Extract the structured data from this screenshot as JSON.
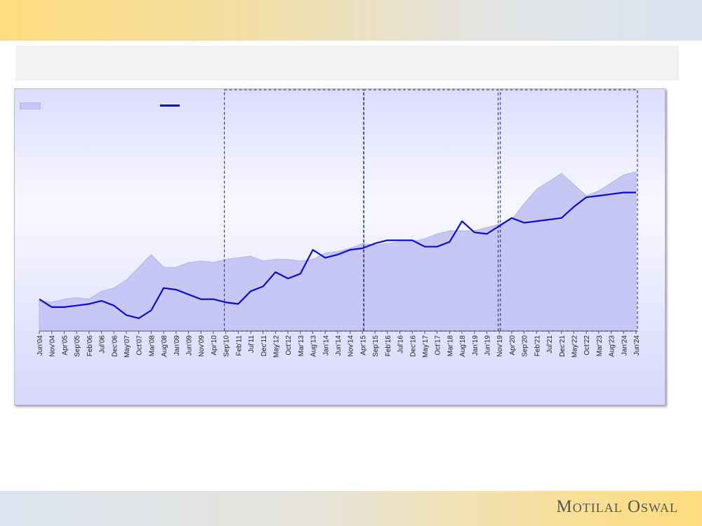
{
  "header": {
    "title": ""
  },
  "brand": {
    "logo_text": "Motilal Oswal"
  },
  "legend": {
    "area_label": "",
    "line_label": ""
  },
  "colors": {
    "area_fill": "#c7c7f5",
    "area_stroke": "#b3b3ea",
    "line": "#0a0ad8",
    "phase_box": "#1a1a6e"
  },
  "chart_data": {
    "type": "line",
    "title": "",
    "xlabel": "",
    "ylabel": "",
    "ylim": [
      0,
      100
    ],
    "grid": false,
    "legend_position": "top-left",
    "x_tick_labels": [
      "Jun'04",
      "Nov'04",
      "Apr'05",
      "Sep'05",
      "Feb'06",
      "Jul'06",
      "Dec'06",
      "May'07",
      "Oct'07",
      "Mar'08",
      "Aug'08",
      "Jan'09",
      "Jun'09",
      "Nov'09",
      "Apr'10",
      "Sep'10",
      "Feb'11",
      "Jul'11",
      "Dec'11",
      "May'12",
      "Oct'12",
      "Mar'13",
      "Aug'13",
      "Jan'14",
      "Jun'14",
      "Nov'14",
      "Apr'15",
      "Sep'15",
      "Feb'16",
      "Jul'16",
      "Dec'16",
      "May'17",
      "Oct'17",
      "Mar'18",
      "Aug'18",
      "Jan'19",
      "Jun'19",
      "Nov'19",
      "Apr'20",
      "Sep'20",
      "Feb'21",
      "Jul'21",
      "Dec'21",
      "May'22",
      "Oct'22",
      "Mar'23",
      "Aug'23",
      "Jan'24",
      "Jun'24"
    ],
    "phases": [
      {
        "start": "Sep'10",
        "end": "Apr'15"
      },
      {
        "start": "May'15",
        "end": "Oct'19"
      },
      {
        "start": "Dec'19",
        "end": "Jun'24"
      }
    ],
    "series": [
      {
        "type": "area",
        "points": [
          [
            "Jun'04",
            19
          ],
          [
            "Nov'04",
            18
          ],
          [
            "Apr'05",
            20
          ],
          [
            "Sep'05",
            21
          ],
          [
            "Feb'06",
            20
          ],
          [
            "Jul'06",
            25
          ],
          [
            "Dec'06",
            27
          ],
          [
            "May'07",
            32
          ],
          [
            "Oct'07",
            40
          ],
          [
            "Mar'08",
            48
          ],
          [
            "Aug'08",
            40
          ],
          [
            "Jan'09",
            40
          ],
          [
            "Jun'09",
            43
          ],
          [
            "Nov'09",
            44
          ],
          [
            "Apr'10",
            43
          ],
          [
            "Sep'10",
            45
          ],
          [
            "Feb'11",
            46
          ],
          [
            "Jul'11",
            47
          ],
          [
            "Dec'11",
            44
          ],
          [
            "May'12",
            45
          ],
          [
            "Oct'12",
            45
          ],
          [
            "Mar'13",
            44
          ],
          [
            "Aug'13",
            45
          ],
          [
            "Jan'14",
            49
          ],
          [
            "Jun'14",
            50
          ],
          [
            "Nov'14",
            52
          ],
          [
            "Apr'15",
            55
          ],
          [
            "Sep'15",
            54
          ],
          [
            "Feb'16",
            55
          ],
          [
            "Jul'16",
            56
          ],
          [
            "Dec'16",
            56
          ],
          [
            "May'17",
            58
          ],
          [
            "Oct'17",
            61
          ],
          [
            "Mar'18",
            63
          ],
          [
            "Aug'18",
            63
          ],
          [
            "Jan'19",
            63
          ],
          [
            "Jun'19",
            65
          ],
          [
            "Nov'19",
            67
          ],
          [
            "Apr'20",
            70
          ],
          [
            "Sep'20",
            80
          ],
          [
            "Feb'21",
            89
          ],
          [
            "Jul'21",
            94
          ],
          [
            "Dec'21",
            99
          ],
          [
            "May'22",
            92
          ],
          [
            "Oct'22",
            85
          ],
          [
            "Mar'23",
            88
          ],
          [
            "Aug'23",
            93
          ],
          [
            "Jan'24",
            98
          ],
          [
            "Jun'24",
            100
          ]
        ]
      },
      {
        "type": "line",
        "points": [
          [
            "Jun'04",
            20
          ],
          [
            "Nov'04",
            15
          ],
          [
            "Apr'05",
            15
          ],
          [
            "Sep'05",
            16
          ],
          [
            "Feb'06",
            17
          ],
          [
            "Jul'06",
            19
          ],
          [
            "Dec'06",
            16
          ],
          [
            "May'07",
            10
          ],
          [
            "Oct'07",
            8
          ],
          [
            "Mar'08",
            13
          ],
          [
            "Aug'08",
            27
          ],
          [
            "Jan'09",
            26
          ],
          [
            "Jun'09",
            23
          ],
          [
            "Nov'09",
            20
          ],
          [
            "Apr'10",
            20
          ],
          [
            "Sep'10",
            18
          ],
          [
            "Feb'11",
            17
          ],
          [
            "Jul'11",
            25
          ],
          [
            "Dec'11",
            28
          ],
          [
            "May'12",
            37
          ],
          [
            "Oct'12",
            33
          ],
          [
            "Mar'13",
            36
          ],
          [
            "Aug'13",
            51
          ],
          [
            "Jan'14",
            46
          ],
          [
            "Jun'14",
            48
          ],
          [
            "Nov'14",
            51
          ],
          [
            "Apr'15",
            52
          ],
          [
            "Sep'15",
            55
          ],
          [
            "Feb'16",
            57
          ],
          [
            "Jul'16",
            57
          ],
          [
            "Dec'16",
            57
          ],
          [
            "May'17",
            53
          ],
          [
            "Oct'17",
            53
          ],
          [
            "Mar'18",
            56
          ],
          [
            "Aug'18",
            69
          ],
          [
            "Jan'19",
            62
          ],
          [
            "Jun'19",
            61
          ],
          [
            "Nov'19",
            66
          ],
          [
            "Apr'20",
            71
          ],
          [
            "Sep'20",
            68
          ],
          [
            "Feb'21",
            69
          ],
          [
            "Jul'21",
            70
          ],
          [
            "Dec'21",
            71
          ],
          [
            "May'22",
            78
          ],
          [
            "Oct'22",
            84
          ],
          [
            "Mar'23",
            85
          ],
          [
            "Aug'23",
            86
          ],
          [
            "Jan'24",
            87
          ],
          [
            "Jun'24",
            87
          ]
        ]
      }
    ]
  }
}
